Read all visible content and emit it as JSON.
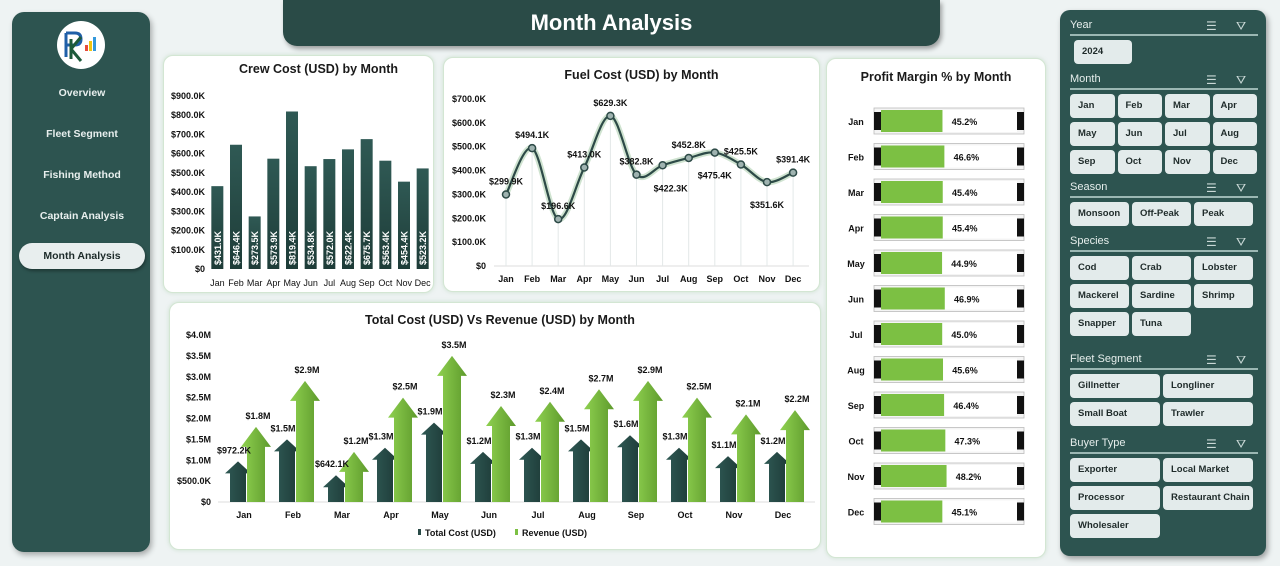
{
  "sidebar": {
    "items": [
      {
        "label": "Overview"
      },
      {
        "label": "Fleet Segment"
      },
      {
        "label": "Fishing Method"
      },
      {
        "label": "Captain  Analysis"
      },
      {
        "label": "Month Analysis",
        "active": true
      }
    ]
  },
  "header": {
    "title": "Month Analysis"
  },
  "colors": {
    "dark": "#2a4b47",
    "green": "#7cc043",
    "panel": "#2d5450"
  },
  "chart_data": [
    {
      "type": "bar",
      "title": "Crew Cost (USD) by Month",
      "categories": [
        "Jan",
        "Feb",
        "Mar",
        "Apr",
        "May",
        "Jun",
        "Jul",
        "Aug",
        "Sep",
        "Oct",
        "Nov",
        "Dec"
      ],
      "values": [
        431.0,
        646.4,
        273.5,
        573.9,
        819.4,
        534.8,
        572.0,
        622.4,
        675.7,
        563.4,
        454.4,
        523.2
      ],
      "labels": [
        "$431.0K",
        "$646.4K",
        "$273.5K",
        "$573.9K",
        "$819.4K",
        "$534.8K",
        "$572.0K",
        "$622.4K",
        "$675.7K",
        "$563.4K",
        "$454.4K",
        "$523.2K"
      ],
      "yticks": [
        "$0",
        "$100.0K",
        "$200.0K",
        "$300.0K",
        "$400.0K",
        "$500.0K",
        "$600.0K",
        "$700.0K",
        "$800.0K",
        "$900.0K"
      ],
      "ylim": [
        0,
        900
      ],
      "unit": "K USD"
    },
    {
      "type": "line",
      "title": "Fuel Cost (USD) by Month",
      "categories": [
        "Jan",
        "Feb",
        "Mar",
        "Apr",
        "May",
        "Jun",
        "Jul",
        "Aug",
        "Sep",
        "Oct",
        "Nov",
        "Dec"
      ],
      "values": [
        299.9,
        494.1,
        196.6,
        413.0,
        629.3,
        382.8,
        422.3,
        452.8,
        475.4,
        425.5,
        351.6,
        391.4
      ],
      "labels": [
        "$299.9K",
        "$494.1K",
        "$196.6K",
        "$413.0K",
        "$629.3K",
        "$382.8K",
        "$422.3K",
        "$452.8K",
        "$475.4K",
        "$425.5K",
        "$351.6K",
        "$391.4K"
      ],
      "yticks": [
        "$0",
        "$100.0K",
        "$200.0K",
        "$300.0K",
        "$400.0K",
        "$500.0K",
        "$600.0K",
        "$700.0K"
      ],
      "ylim": [
        0,
        700
      ],
      "unit": "K USD"
    },
    {
      "type": "bar",
      "title": "Total Cost (USD) Vs Revenue (USD) by Month",
      "categories": [
        "Jan",
        "Feb",
        "Mar",
        "Apr",
        "May",
        "Jun",
        "Jul",
        "Aug",
        "Sep",
        "Oct",
        "Nov",
        "Dec"
      ],
      "series": [
        {
          "name": "Total Cost (USD)",
          "values": [
            0.9722,
            1.5,
            0.6421,
            1.3,
            1.9,
            1.2,
            1.3,
            1.5,
            1.6,
            1.3,
            1.1,
            1.2
          ],
          "labels": [
            "$972.2K",
            "$1.5M",
            "$642.1K",
            "$1.3M",
            "$1.9M",
            "$1.2M",
            "$1.3M",
            "$1.5M",
            "$1.6M",
            "$1.3M",
            "$1.1M",
            "$1.2M"
          ],
          "color": "#2a4b47"
        },
        {
          "name": "Revenue (USD)",
          "values": [
            1.8,
            2.9,
            1.2,
            2.5,
            3.5,
            2.3,
            2.4,
            2.7,
            2.9,
            2.5,
            2.1,
            2.2
          ],
          "labels": [
            "$1.8M",
            "$2.9M",
            "$1.2M",
            "$2.5M",
            "$3.5M",
            "$2.3M",
            "$2.4M",
            "$2.7M",
            "$2.9M",
            "$2.5M",
            "$2.1M",
            "$2.2M"
          ],
          "color": "#7cc043"
        }
      ],
      "yticks": [
        "$0",
        "$500.0K",
        "$1.0M",
        "$1.5M",
        "$2.0M",
        "$2.5M",
        "$3.0M",
        "$3.5M",
        "$4.0M"
      ],
      "ylim": [
        0,
        4.0
      ],
      "unit": "M USD",
      "legend": "bottom"
    },
    {
      "type": "bar",
      "orientation": "horizontal",
      "title": "Profit Margin % by Month",
      "categories": [
        "Jan",
        "Feb",
        "Mar",
        "Apr",
        "May",
        "Jun",
        "Jul",
        "Aug",
        "Sep",
        "Oct",
        "Nov",
        "Dec"
      ],
      "values": [
        45.2,
        46.6,
        45.4,
        45.4,
        44.9,
        46.9,
        45.0,
        45.6,
        46.4,
        47.3,
        48.2,
        45.1
      ],
      "labels": [
        "45.2%",
        "46.6%",
        "45.4%",
        "45.4%",
        "44.9%",
        "46.9%",
        "45.0%",
        "45.6%",
        "46.4%",
        "47.3%",
        "48.2%",
        "45.1%"
      ],
      "xlim": [
        0,
        100
      ]
    }
  ],
  "filters": [
    {
      "title": "Year",
      "items": [
        "2024"
      ]
    },
    {
      "title": "Month",
      "items": [
        "Jan",
        "Feb",
        "Mar",
        "Apr",
        "May",
        "Jun",
        "Jul",
        "Aug",
        "Sep",
        "Oct",
        "Nov",
        "Dec"
      ]
    },
    {
      "title": "Season",
      "items": [
        "Monsoon",
        "Off-Peak",
        "Peak"
      ]
    },
    {
      "title": "Species",
      "items": [
        "Cod",
        "Crab",
        "Lobster",
        "Mackerel",
        "Sardine",
        "Shrimp",
        "Snapper",
        "Tuna"
      ]
    },
    {
      "title": "Fleet Segment",
      "items": [
        "Gillnetter",
        "Longliner",
        "Small Boat",
        "Trawler"
      ]
    },
    {
      "title": "Buyer Type",
      "items": [
        "Exporter",
        "Local Market",
        "Processor",
        "Restaurant Chain",
        "Wholesaler"
      ]
    }
  ]
}
